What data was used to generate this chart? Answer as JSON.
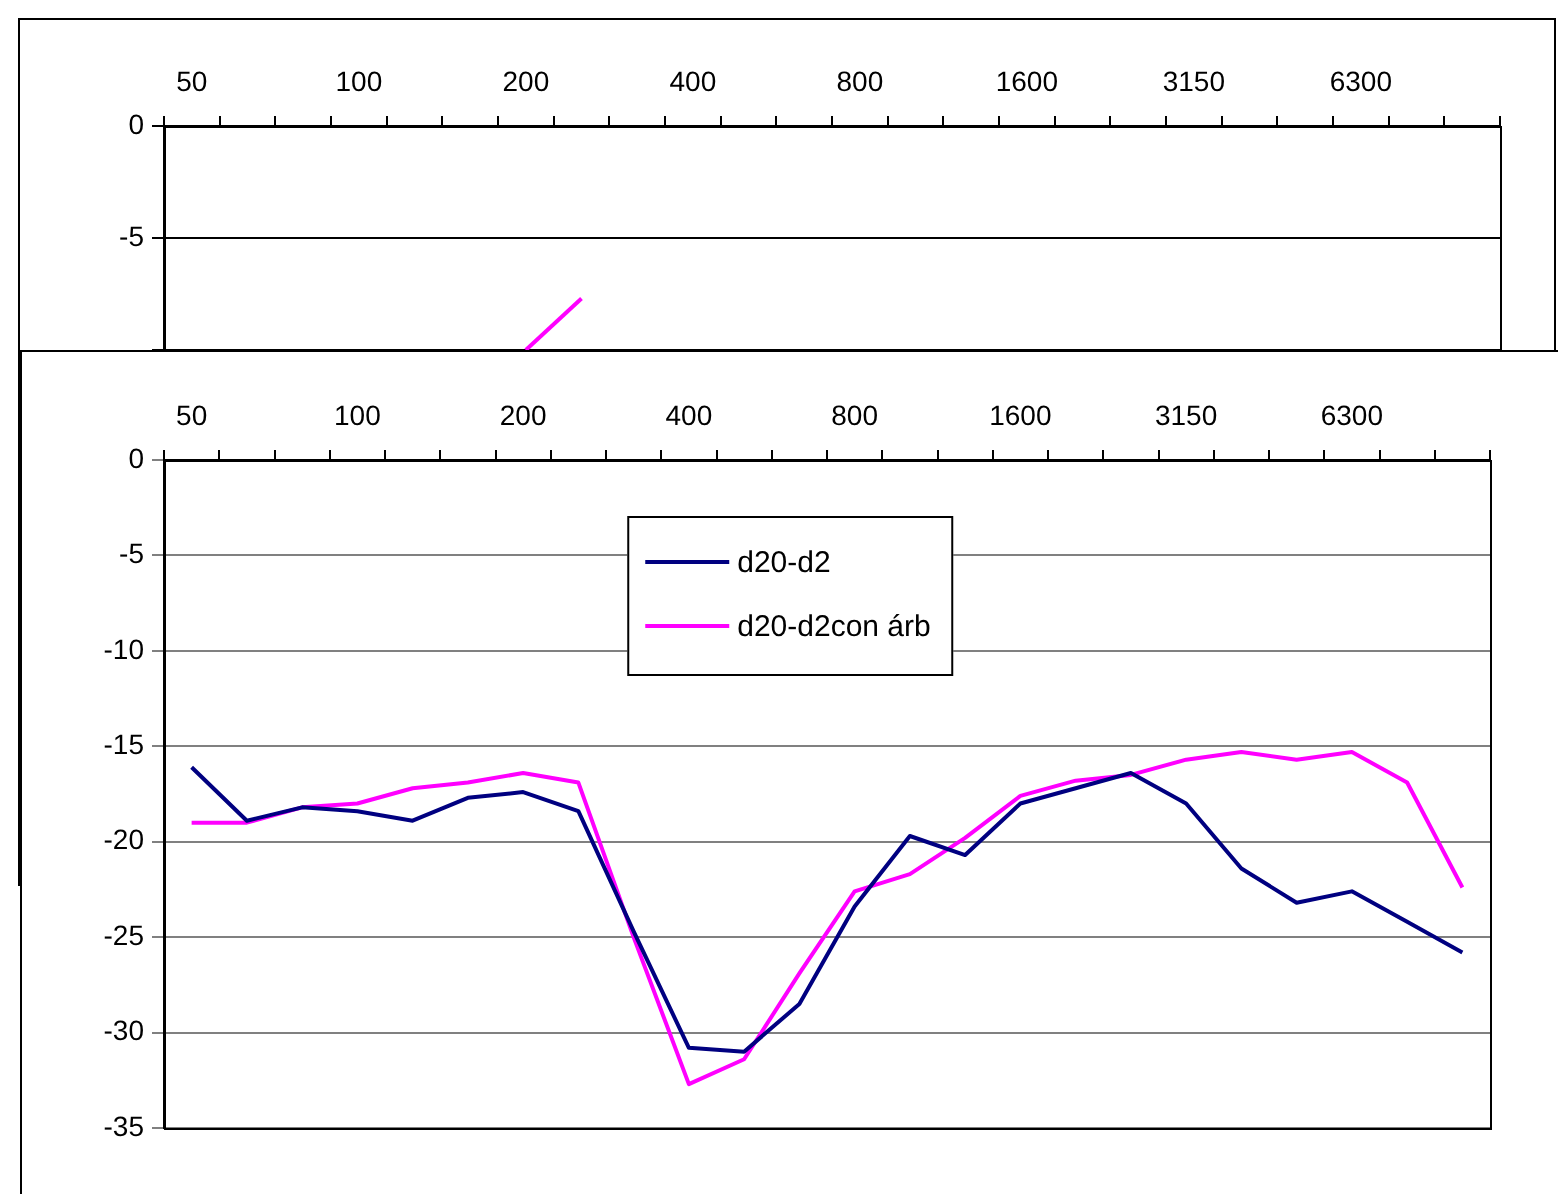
{
  "chart_data": [
    {
      "type": "line",
      "categories": [
        "50",
        null,
        null,
        "100",
        null,
        null,
        "200",
        null,
        null,
        "400",
        null,
        null,
        "800",
        null,
        null,
        "1600",
        null,
        null,
        "3150",
        null,
        null,
        "6300",
        null,
        null
      ],
      "series": [
        {
          "color": "#ff00ff",
          "values": [
            null,
            null,
            null,
            null,
            null,
            null,
            -10,
            -7.7,
            null,
            null,
            null,
            null,
            null,
            null,
            null,
            null,
            null,
            null,
            null,
            null,
            null,
            null,
            null,
            null
          ]
        }
      ],
      "ylim": [
        -30,
        0
      ],
      "yticks": [
        0,
        -5,
        {
          "value": -10,
          "label": null
        }
      ],
      "grid": "y",
      "legend": false,
      "marker": "none",
      "line_style": "solid"
    },
    {
      "type": "line",
      "categories": [
        "50",
        null,
        null,
        "100",
        null,
        null,
        "200",
        null,
        null,
        "400",
        null,
        null,
        "800",
        null,
        null,
        "1600",
        null,
        null,
        "3150",
        null,
        null,
        "6300",
        null,
        null
      ],
      "series": [
        {
          "name": "d20-d2",
          "color": "#000080",
          "values": [
            -16.1,
            -18.9,
            -18.2,
            -18.4,
            -18.9,
            -17.7,
            -17.4,
            -18.4,
            -24.7,
            -30.8,
            -31.0,
            -28.5,
            -23.4,
            -19.7,
            -20.7,
            -18.0,
            -17.2,
            -16.4,
            -18.0,
            -21.4,
            -23.2,
            -22.6,
            -24.2,
            -25.8
          ]
        },
        {
          "name": "d20-d2con árb",
          "color": "#ff00ff",
          "values": [
            -19.0,
            -19.0,
            -18.2,
            -18.0,
            -17.2,
            -16.9,
            -16.4,
            -16.9,
            -25.0,
            -32.7,
            -31.4,
            -26.9,
            -22.6,
            -21.7,
            -19.8,
            -17.6,
            -16.8,
            -16.5,
            -15.7,
            -15.3,
            -15.7,
            -15.3,
            -16.9,
            -22.4
          ]
        }
      ],
      "ylim": [
        -35,
        0
      ],
      "yticks": [
        0,
        -5,
        -10,
        -15,
        -20,
        -25,
        -30,
        -35
      ],
      "grid": "y",
      "legend": "top",
      "marker": "none",
      "line_style": "solid"
    }
  ]
}
